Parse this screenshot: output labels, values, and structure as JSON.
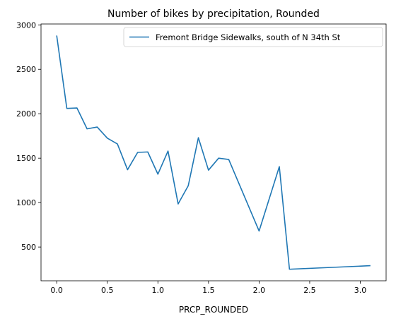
{
  "chart_data": {
    "type": "line",
    "title": "Number of bikes by precipitation, Rounded",
    "xlabel": "PRCP_ROUNDED",
    "ylabel": "",
    "xlim": [
      -0.155,
      3.255
    ],
    "ylim": [
      120,
      3010
    ],
    "xticks": [
      0.0,
      0.5,
      1.0,
      1.5,
      2.0,
      2.5,
      3.0
    ],
    "xtick_labels": [
      "0.0",
      "0.5",
      "1.0",
      "1.5",
      "2.0",
      "2.5",
      "3.0"
    ],
    "yticks": [
      500,
      1000,
      1500,
      2000,
      2500,
      3000
    ],
    "ytick_labels": [
      "500",
      "1000",
      "1500",
      "2000",
      "2500",
      "3000"
    ],
    "grid": false,
    "legend_position": "upper-right",
    "series": [
      {
        "name": "Fremont Bridge Sidewalks, south of N 34th St",
        "color": "#1f77b4",
        "x": [
          0.0,
          0.1,
          0.2,
          0.3,
          0.4,
          0.5,
          0.6,
          0.7,
          0.8,
          0.9,
          1.0,
          1.1,
          1.2,
          1.3,
          1.4,
          1.5,
          1.6,
          1.7,
          2.0,
          2.2,
          2.3,
          3.1
        ],
        "y": [
          2880,
          2060,
          2065,
          1830,
          1850,
          1725,
          1660,
          1370,
          1565,
          1570,
          1320,
          1580,
          985,
          1190,
          1730,
          1365,
          1500,
          1485,
          680,
          1405,
          250,
          290
        ]
      }
    ]
  }
}
